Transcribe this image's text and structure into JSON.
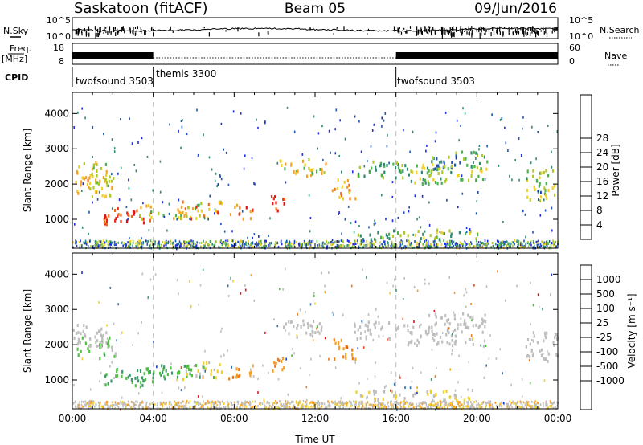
{
  "header": {
    "title": "Saskatoon (fitACF)",
    "beam": "Beam 05",
    "date": "09/Jun/2016"
  },
  "status_panels": {
    "nsky_label": "N.Sky",
    "nsky_ticks": [
      "10^5",
      "10^0"
    ],
    "nsearch_label": "N.Search",
    "nsearch_ticks": [
      "10^5",
      "10^0"
    ],
    "freq_label": "Freq.",
    "freq_unit": "[MHz]",
    "freq_ticks": [
      18,
      8
    ],
    "nave_label": "Nave",
    "nave_ticks": [
      60,
      0
    ],
    "cpid_label": "CPID",
    "cpid_segments": [
      {
        "name": "twofsound 3503",
        "start_h": 0,
        "end_h": 4
      },
      {
        "name": "themis 3300",
        "start_h": 4,
        "end_h": 16
      },
      {
        "name": "twofsound 3503",
        "start_h": 16,
        "end_h": 24
      }
    ]
  },
  "chart_data": [
    {
      "type": "heatmap",
      "parameter": "Power",
      "ylabel": "Slant Range [km]",
      "xlabel": "",
      "xlim": [
        0,
        24
      ],
      "ylim": [
        180,
        4600
      ],
      "yticks": [
        1000,
        2000,
        3000,
        4000
      ],
      "colorbar": {
        "label": "Power [dB]",
        "ticks": [
          4,
          8,
          12,
          16,
          20,
          24,
          28
        ],
        "colors": [
          "#1f2fe0",
          "#1c57b8",
          "#2f8a72",
          "#49b24a",
          "#b0c82a",
          "#f0d020",
          "#f5a020",
          "#f06a1a",
          "#e82a18",
          "#e81010"
        ]
      }
    },
    {
      "type": "heatmap",
      "parameter": "Velocity",
      "ylabel": "Slant Range [km]",
      "xlabel": "Time UT",
      "xlim": [
        0,
        24
      ],
      "ylim": [
        180,
        4600
      ],
      "yticks": [
        1000,
        2000,
        3000,
        4000
      ],
      "xticks": [
        "00:00",
        "04:00",
        "08:00",
        "12:00",
        "16:00",
        "20:00",
        "00:00"
      ],
      "colorbar": {
        "label": "Velocity [m s⁻¹]",
        "ticks": [
          1000,
          500,
          100,
          25,
          -25,
          -100,
          -500,
          -1000
        ],
        "colors": [
          "#1a3cc8",
          "#2c6fb0",
          "#3a9a6a",
          "#50c040",
          "#bebebe",
          "#f0d028",
          "#f5a023",
          "#f07a18",
          "#ea4a18",
          "#e81414"
        ]
      }
    }
  ]
}
